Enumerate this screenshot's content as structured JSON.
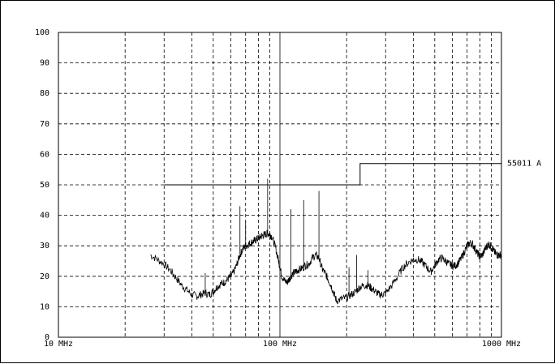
{
  "chart_data": {
    "type": "line",
    "title": "",
    "xlabel": "",
    "ylabel": "",
    "x_scale": "log",
    "xlim": [
      10,
      1000
    ],
    "ylim": [
      0,
      100
    ],
    "grid": true,
    "y_ticks": [
      "0",
      "10",
      "20",
      "30",
      "40",
      "50",
      "60",
      "70",
      "80",
      "90",
      "100"
    ],
    "x_ticks": [
      {
        "value": 10,
        "label": "10 MHz"
      },
      {
        "value": 100,
        "label": "100 MHz"
      },
      {
        "value": 1000,
        "label": "1000 MHz"
      }
    ],
    "limit_line": {
      "name": "55011 A",
      "points": [
        [
          30,
          50
        ],
        [
          230,
          50
        ],
        [
          230,
          57
        ],
        [
          1000,
          57
        ]
      ]
    },
    "series": [
      {
        "x": [
          26.0,
          28.0,
          30.0,
          32.0,
          34.0,
          36.0,
          38.0,
          40.0,
          42.0,
          44.0,
          46.0,
          48.0,
          50.0,
          52.0,
          54.0,
          56.0,
          58.0,
          60.0,
          62.0,
          64.0,
          66.0,
          68.0,
          70.0,
          72.0,
          74.0,
          76.0,
          78.0,
          80.0,
          82.0,
          84.0,
          86.0,
          88.0,
          90.0,
          92.0,
          95.0,
          98.0,
          100.0,
          102.0,
          105.0,
          108.0,
          110.0,
          112.0,
          115.0,
          118.0,
          120.0,
          125.0,
          130.0,
          135.0,
          140.0,
          145.0,
          150.0,
          155.0,
          160.0,
          165.0,
          170.0,
          175.0,
          180.0,
          190.0,
          200.0,
          210.0,
          220.0,
          230.0,
          240.0,
          250.0,
          260.0,
          270.0,
          280.0,
          290.0,
          300.0,
          320.0,
          340.0,
          360.0,
          380.0,
          400.0,
          420.0,
          440.0,
          460.0,
          480.0,
          500.0,
          520.0,
          540.0,
          560.0,
          580.0,
          600.0,
          620.0,
          640.0,
          660.0,
          680.0,
          700.0,
          720.0,
          740.0,
          760.0,
          780.0,
          800.0,
          820.0,
          840.0,
          860.0,
          880.0,
          900.0,
          920.0,
          940.0,
          960.0,
          980.0,
          1000.0
        ],
        "y": [
          27,
          25.5,
          24,
          22,
          19.5,
          17,
          15.5,
          14,
          13.5,
          14,
          14.5,
          14,
          15,
          16.5,
          17.5,
          18,
          19,
          20,
          21.5,
          24,
          27,
          29,
          30,
          30.5,
          31,
          31.5,
          32,
          32.5,
          33,
          33.5,
          33.8,
          34,
          33.8,
          33,
          30,
          26,
          23,
          20,
          18.5,
          18,
          19,
          20,
          21,
          21.5,
          22,
          22.5,
          23.5,
          24,
          26,
          27,
          26,
          22.5,
          21,
          19,
          17,
          14.5,
          12,
          12.5,
          13,
          14,
          15,
          16.5,
          17,
          17,
          16,
          15,
          14,
          14,
          14.5,
          17,
          20,
          23,
          24.5,
          25.5,
          25.5,
          24.5,
          23,
          21.5,
          23.5,
          25.5,
          26,
          25,
          24,
          23.5,
          23.5,
          24.5,
          26,
          28,
          30,
          31,
          30.5,
          29,
          27.5,
          26.5,
          27,
          28.5,
          30,
          30.5,
          29.5,
          28.5,
          27.5,
          27,
          27,
          27
        ]
      }
    ],
    "spikes": [
      {
        "x": 46,
        "y": 21
      },
      {
        "x": 66,
        "y": 43
      },
      {
        "x": 70,
        "y": 38
      },
      {
        "x": 88,
        "y": 52
      },
      {
        "x": 112,
        "y": 42
      },
      {
        "x": 128,
        "y": 45
      },
      {
        "x": 150,
        "y": 48
      },
      {
        "x": 205,
        "y": 23
      },
      {
        "x": 222,
        "y": 27
      },
      {
        "x": 250,
        "y": 22
      }
    ]
  }
}
